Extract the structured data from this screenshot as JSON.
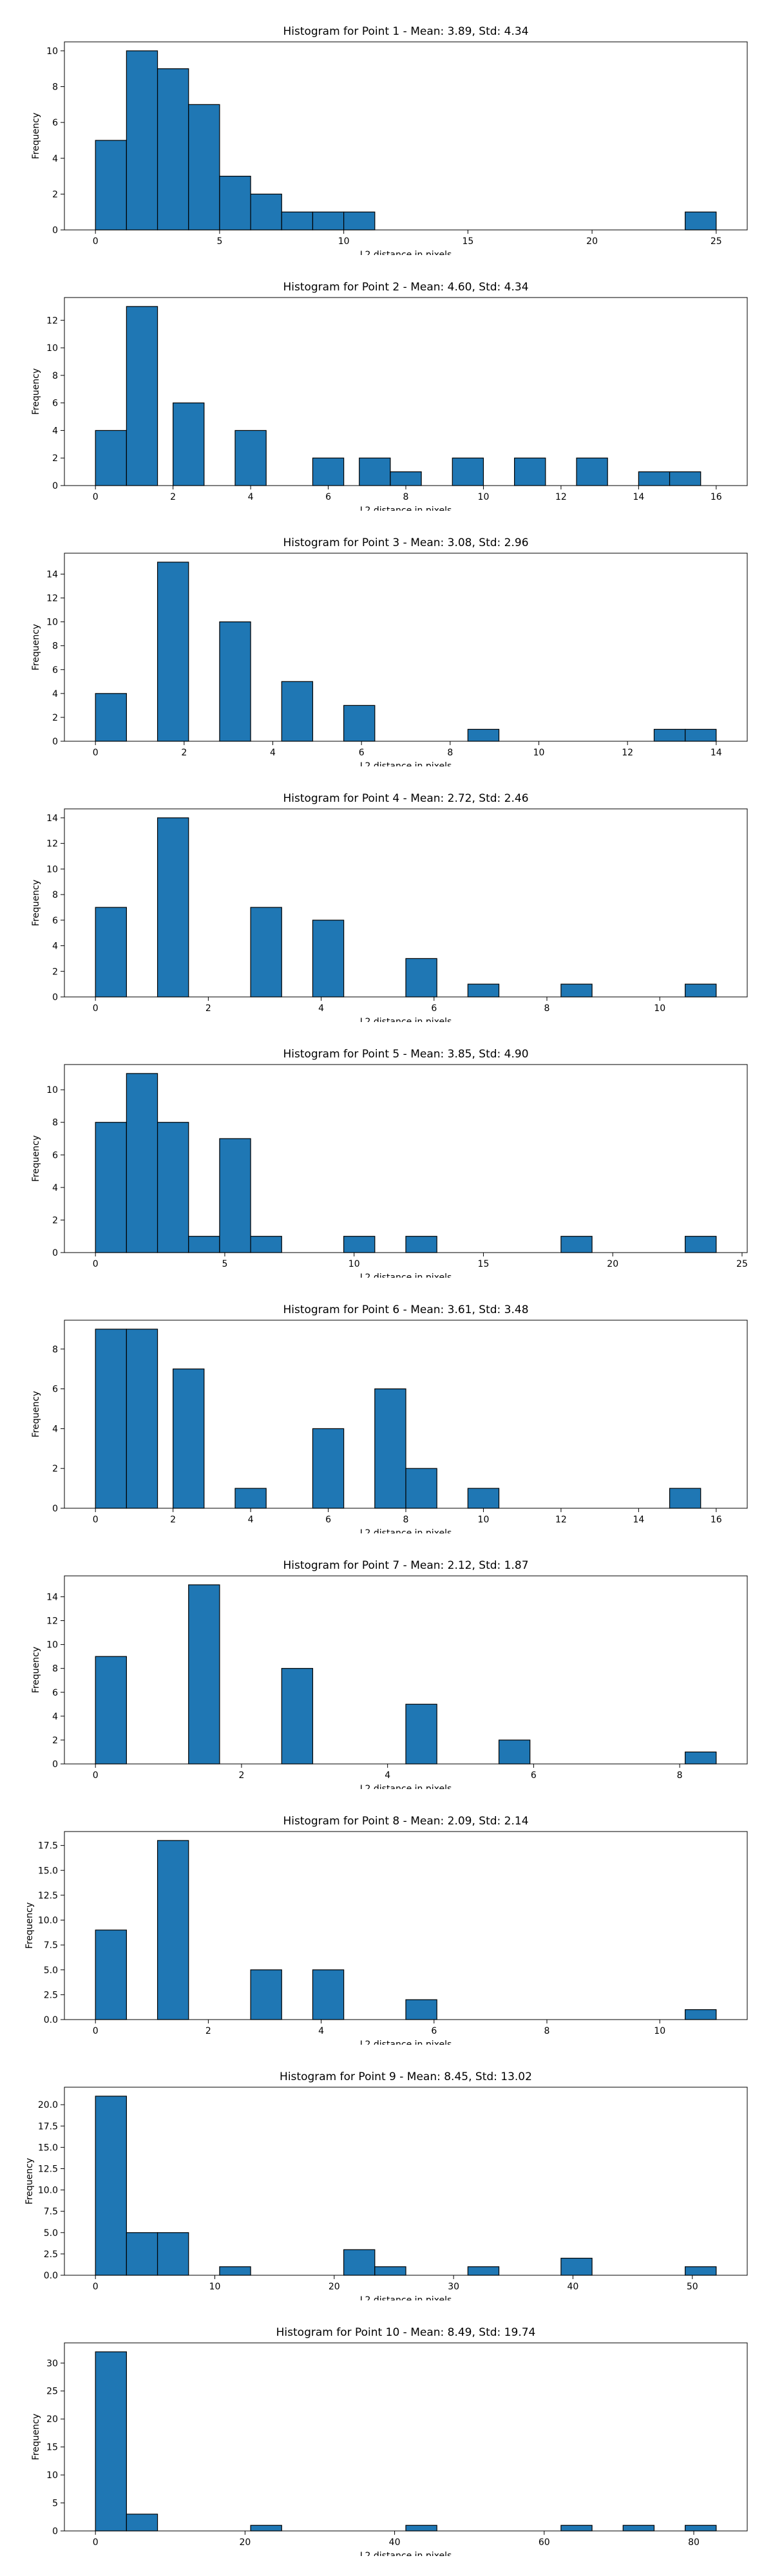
{
  "chart_data": [
    {
      "type": "bar",
      "title": "Histogram for Point 1 - Mean: 3.89, Std: 4.34",
      "xlabel": "L2 distance in pixels",
      "ylabel": "Frequency",
      "xlim": [
        -1.25,
        26.25
      ],
      "ylim": [
        0,
        10.5
      ],
      "xticks": [
        0,
        5,
        10,
        15,
        20,
        25
      ],
      "yticks": [
        0,
        2,
        4,
        6,
        8,
        10
      ],
      "bins": [
        [
          0,
          1.25,
          5
        ],
        [
          1.25,
          2.5,
          10
        ],
        [
          2.5,
          3.75,
          9
        ],
        [
          3.75,
          5.0,
          7
        ],
        [
          5.0,
          6.25,
          3
        ],
        [
          6.25,
          7.5,
          2
        ],
        [
          7.5,
          8.75,
          1
        ],
        [
          8.75,
          10.0,
          1
        ],
        [
          10.0,
          11.25,
          1
        ],
        [
          23.75,
          25.0,
          1
        ]
      ]
    },
    {
      "type": "bar",
      "title": "Histogram for Point 2 - Mean: 4.60, Std: 4.34",
      "xlabel": "L2 distance in pixels",
      "ylabel": "Frequency",
      "xlim": [
        -0.8,
        16.8
      ],
      "ylim": [
        0,
        13.65
      ],
      "xticks": [
        0,
        2,
        4,
        6,
        8,
        10,
        12,
        14,
        16
      ],
      "yticks": [
        0,
        2,
        4,
        6,
        8,
        10,
        12
      ],
      "bins": [
        [
          0,
          0.8,
          4
        ],
        [
          0.8,
          1.6,
          13
        ],
        [
          2.0,
          2.8,
          6
        ],
        [
          3.6,
          4.4,
          4
        ],
        [
          5.6,
          6.4,
          2
        ],
        [
          6.8,
          7.6,
          2
        ],
        [
          7.6,
          8.4,
          1
        ],
        [
          9.2,
          10.0,
          2
        ],
        [
          10.8,
          11.6,
          2
        ],
        [
          12.4,
          13.2,
          2
        ],
        [
          14.0,
          14.8,
          1
        ],
        [
          14.8,
          15.6,
          1
        ]
      ]
    },
    {
      "type": "bar",
      "title": "Histogram for Point 3 - Mean: 3.08, Std: 2.96",
      "xlabel": "L2 distance in pixels",
      "ylabel": "Frequency",
      "xlim": [
        -0.7,
        14.7
      ],
      "ylim": [
        0,
        15.75
      ],
      "xticks": [
        0,
        2,
        4,
        6,
        8,
        10,
        12,
        14
      ],
      "yticks": [
        0,
        2,
        4,
        6,
        8,
        10,
        12,
        14
      ],
      "bins": [
        [
          0,
          0.7,
          4
        ],
        [
          1.4,
          2.1,
          15
        ],
        [
          2.8,
          3.5,
          10
        ],
        [
          4.2,
          4.9,
          5
        ],
        [
          5.6,
          6.3,
          3
        ],
        [
          8.4,
          9.1,
          1
        ],
        [
          12.6,
          13.3,
          1
        ],
        [
          13.3,
          14.0,
          1
        ]
      ]
    },
    {
      "type": "bar",
      "title": "Histogram for Point 4 - Mean: 2.72, Std: 2.46",
      "xlabel": "L2 distance in pixels",
      "ylabel": "Frequency",
      "xlim": [
        -0.55,
        11.55
      ],
      "ylim": [
        0,
        14.7
      ],
      "xticks": [
        0,
        2,
        4,
        6,
        8,
        10
      ],
      "yticks": [
        0,
        2,
        4,
        6,
        8,
        10,
        12,
        14
      ],
      "bins": [
        [
          0,
          0.55,
          7
        ],
        [
          1.1,
          1.65,
          14
        ],
        [
          2.75,
          3.3,
          7
        ],
        [
          3.85,
          4.4,
          6
        ],
        [
          5.5,
          6.05,
          3
        ],
        [
          6.6,
          7.15,
          1
        ],
        [
          8.25,
          8.8,
          1
        ],
        [
          10.45,
          11.0,
          1
        ]
      ]
    },
    {
      "type": "bar",
      "title": "Histogram for Point 5 - Mean: 3.85, Std: 4.90",
      "xlabel": "L2 distance in pixels",
      "ylabel": "Frequency",
      "xlim": [
        -1.2,
        25.2
      ],
      "ylim": [
        0,
        11.55
      ],
      "xticks": [
        0,
        5,
        10,
        15,
        20,
        25
      ],
      "yticks": [
        0,
        2,
        4,
        6,
        8,
        10
      ],
      "bins": [
        [
          0,
          1.2,
          8
        ],
        [
          1.2,
          2.4,
          11
        ],
        [
          2.4,
          3.6,
          8
        ],
        [
          3.6,
          4.8,
          1
        ],
        [
          4.8,
          6.0,
          7
        ],
        [
          6.0,
          7.2,
          1
        ],
        [
          9.6,
          10.8,
          1
        ],
        [
          12.0,
          13.2,
          1
        ],
        [
          18.0,
          19.2,
          1
        ],
        [
          22.8,
          24.0,
          1
        ]
      ]
    },
    {
      "type": "bar",
      "title": "Histogram for Point 6 - Mean: 3.61, Std: 3.48",
      "xlabel": "L2 distance in pixels",
      "ylabel": "Frequency",
      "xlim": [
        -0.8,
        16.8
      ],
      "ylim": [
        0,
        9.45
      ],
      "xticks": [
        0,
        2,
        4,
        6,
        8,
        10,
        12,
        14,
        16
      ],
      "yticks": [
        0,
        2,
        4,
        6,
        8
      ],
      "bins": [
        [
          0,
          0.8,
          9
        ],
        [
          0.8,
          1.6,
          9
        ],
        [
          2.0,
          2.8,
          7
        ],
        [
          3.6,
          4.4,
          1
        ],
        [
          5.6,
          6.4,
          4
        ],
        [
          7.2,
          8.0,
          6
        ],
        [
          8.0,
          8.8,
          2
        ],
        [
          9.6,
          10.4,
          1
        ],
        [
          14.8,
          15.6,
          1
        ]
      ]
    },
    {
      "type": "bar",
      "title": "Histogram for Point 7 - Mean: 2.12, Std: 1.87",
      "xlabel": "L2 distance in pixels",
      "ylabel": "Frequency",
      "xlim": [
        -0.425,
        8.925
      ],
      "ylim": [
        0,
        15.75
      ],
      "xticks": [
        0,
        2,
        4,
        6,
        8
      ],
      "yticks": [
        0,
        2,
        4,
        6,
        8,
        10,
        12,
        14
      ],
      "bins": [
        [
          0,
          0.425,
          9
        ],
        [
          1.275,
          1.7,
          15
        ],
        [
          2.55,
          2.975,
          8
        ],
        [
          4.25,
          4.675,
          5
        ],
        [
          5.525,
          5.95,
          2
        ],
        [
          8.075,
          8.5,
          1
        ]
      ]
    },
    {
      "type": "bar",
      "title": "Histogram for Point 8 - Mean: 2.09, Std: 2.14",
      "xlabel": "L2 distance in pixels",
      "ylabel": "Frequency",
      "xlim": [
        -0.55,
        11.55
      ],
      "ylim": [
        0,
        18.9
      ],
      "xticks": [
        0,
        2,
        4,
        6,
        8,
        10
      ],
      "yticks": [
        0.0,
        2.5,
        5.0,
        7.5,
        10.0,
        12.5,
        15.0,
        17.5
      ],
      "ytick_decimals": 1,
      "bins": [
        [
          0,
          0.55,
          9
        ],
        [
          1.1,
          1.65,
          18
        ],
        [
          2.75,
          3.3,
          5
        ],
        [
          3.85,
          4.4,
          5
        ],
        [
          5.5,
          6.05,
          2
        ],
        [
          10.45,
          11.0,
          1
        ]
      ]
    },
    {
      "type": "bar",
      "title": "Histogram for Point 9 - Mean: 8.45, Std: 13.02",
      "xlabel": "L2 distance in pixels",
      "ylabel": "Frequency",
      "xlim": [
        -2.6,
        54.6
      ],
      "ylim": [
        0,
        22.05
      ],
      "xticks": [
        0,
        10,
        20,
        30,
        40,
        50
      ],
      "yticks": [
        0.0,
        2.5,
        5.0,
        7.5,
        10.0,
        12.5,
        15.0,
        17.5,
        20.0
      ],
      "ytick_decimals": 1,
      "bins": [
        [
          0,
          2.6,
          21
        ],
        [
          2.6,
          5.2,
          5
        ],
        [
          5.2,
          7.8,
          5
        ],
        [
          10.4,
          13.0,
          1
        ],
        [
          20.8,
          23.4,
          3
        ],
        [
          23.4,
          26.0,
          1
        ],
        [
          31.2,
          33.8,
          1
        ],
        [
          39.0,
          41.6,
          2
        ],
        [
          49.4,
          52.0,
          1
        ]
      ]
    },
    {
      "type": "bar",
      "title": "Histogram for Point 10 - Mean: 8.49, Std: 19.74",
      "xlabel": "L2 distance in pixels",
      "ylabel": "Frequency",
      "xlim": [
        -4.15,
        87.15
      ],
      "ylim": [
        0,
        33.6
      ],
      "xticks": [
        0,
        20,
        40,
        60,
        80
      ],
      "yticks": [
        0,
        5,
        10,
        15,
        20,
        25,
        30
      ],
      "bins": [
        [
          0,
          4.15,
          32
        ],
        [
          4.15,
          8.3,
          3
        ],
        [
          20.75,
          24.9,
          1
        ],
        [
          41.5,
          45.65,
          1
        ],
        [
          62.25,
          66.4,
          1
        ],
        [
          70.55,
          74.7,
          1
        ],
        [
          78.85,
          83.0,
          1
        ]
      ]
    }
  ]
}
